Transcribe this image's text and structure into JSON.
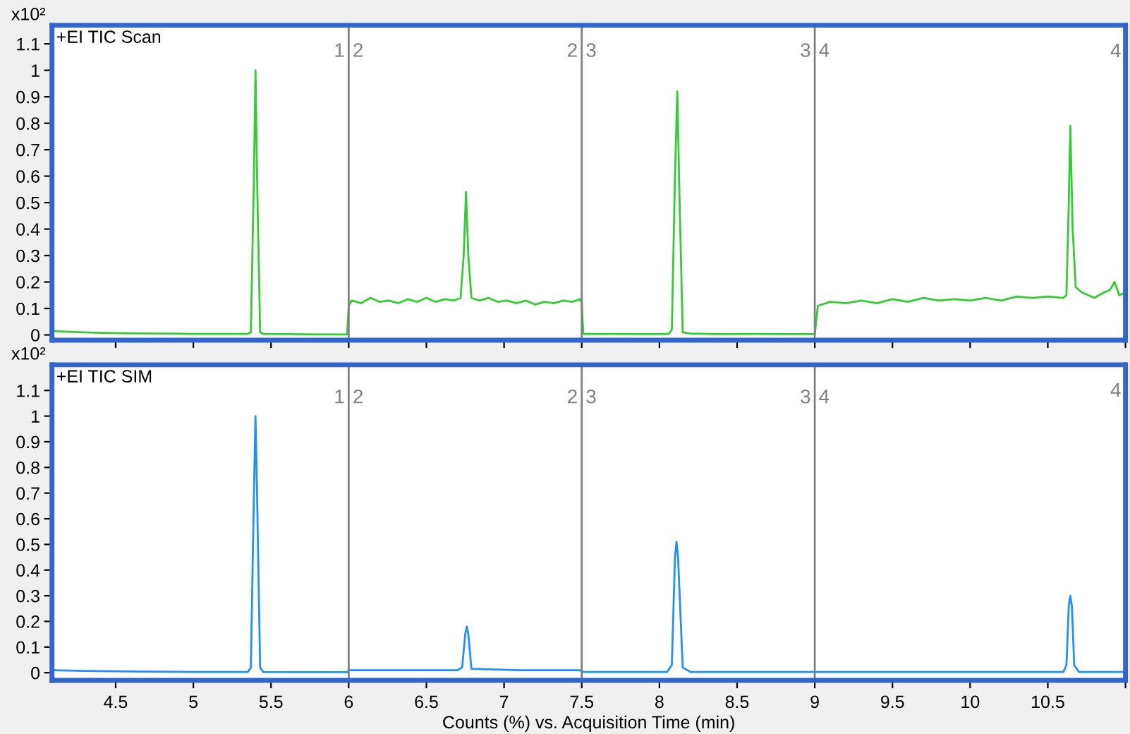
{
  "chart_data": [
    {
      "type": "line",
      "title": "+EI TIC Scan",
      "ylabel": "x10²",
      "color": "#33cc33",
      "tick_labels": "y",
      "grid": false,
      "legend": false,
      "xlim": [
        4.09,
        11.0
      ],
      "ylim": [
        -0.02,
        1.17
      ],
      "xticks": [
        4.5,
        5,
        5.5,
        6,
        6.5,
        7,
        7.5,
        8,
        8.5,
        9,
        9.5,
        10,
        10.5,
        {
          "value": 11,
          "label": null
        }
      ],
      "yticks": [
        0,
        0.1,
        0.2,
        0.3,
        0.4,
        0.5,
        0.6,
        0.7,
        0.8,
        0.9,
        1,
        1.1
      ],
      "ref_lines": [
        {
          "axis": "x",
          "value": 6,
          "color": "#808080"
        },
        {
          "axis": "x",
          "value": 7.5,
          "color": "#808080"
        },
        {
          "axis": "x",
          "value": 9,
          "color": "#808080"
        }
      ],
      "annotations": [
        {
          "text": "1",
          "x": 6,
          "y": 1.07
        },
        {
          "text": "2",
          "x": 6,
          "y": 1.07
        },
        {
          "text": "2",
          "x": 7.5,
          "y": 1.07
        },
        {
          "text": "3",
          "x": 7.5,
          "y": 1.07
        },
        {
          "text": "3",
          "x": 9,
          "y": 1.07
        },
        {
          "text": "4",
          "x": 9,
          "y": 1.07
        },
        "4"
      ],
      "x": [
        4.09,
        4.2,
        4.4,
        4.6,
        4.8,
        5.0,
        5.2,
        5.35,
        5.37,
        5.39,
        5.4,
        5.41,
        5.43,
        5.45,
        5.6,
        5.8,
        5.99,
        6.0,
        6.02,
        6.08,
        6.14,
        6.2,
        6.26,
        6.32,
        6.38,
        6.44,
        6.5,
        6.56,
        6.62,
        6.68,
        6.72,
        6.74,
        6.755,
        6.77,
        6.79,
        6.84,
        6.9,
        6.96,
        7.02,
        7.08,
        7.14,
        7.2,
        7.26,
        7.32,
        7.38,
        7.44,
        7.49,
        7.5,
        7.51,
        7.7,
        7.9,
        8.06,
        8.08,
        8.1,
        8.115,
        8.13,
        8.15,
        8.2,
        8.4,
        8.6,
        8.8,
        8.99,
        9.0,
        9.02,
        9.1,
        9.2,
        9.3,
        9.4,
        9.5,
        9.6,
        9.7,
        9.8,
        9.9,
        10.0,
        10.1,
        10.2,
        10.3,
        10.4,
        10.5,
        10.6,
        10.62,
        10.635,
        10.645,
        10.66,
        10.68,
        10.72,
        10.8,
        10.86,
        10.9,
        10.93,
        10.96,
        11.0
      ],
      "values": [
        0.015,
        0.012,
        0.008,
        0.006,
        0.005,
        0.004,
        0.004,
        0.004,
        0.01,
        0.6,
        1.0,
        0.6,
        0.01,
        0.004,
        0.003,
        0.002,
        0.002,
        0.11,
        0.13,
        0.12,
        0.14,
        0.125,
        0.13,
        0.12,
        0.135,
        0.125,
        0.14,
        0.125,
        0.135,
        0.13,
        0.14,
        0.3,
        0.54,
        0.3,
        0.14,
        0.13,
        0.14,
        0.125,
        0.13,
        0.12,
        0.13,
        0.115,
        0.125,
        0.12,
        0.13,
        0.125,
        0.135,
        0.12,
        0.003,
        0.004,
        0.003,
        0.004,
        0.02,
        0.6,
        0.92,
        0.5,
        0.01,
        0.005,
        0.003,
        0.004,
        0.003,
        0.003,
        0.003,
        0.11,
        0.125,
        0.12,
        0.13,
        0.12,
        0.135,
        0.125,
        0.14,
        0.13,
        0.135,
        0.13,
        0.14,
        0.13,
        0.145,
        0.14,
        0.145,
        0.14,
        0.15,
        0.5,
        0.79,
        0.4,
        0.18,
        0.16,
        0.14,
        0.16,
        0.17,
        0.2,
        0.15,
        0.16
      ]
    },
    {
      "type": "line",
      "title": "+EI TIC SIM",
      "ylabel": "x10²",
      "xlabel": "Counts (%) vs. Acquisition Time (min)",
      "color": "#1e90ff",
      "grid": false,
      "legend": false,
      "xlim": [
        4.09,
        11.0
      ],
      "ylim": [
        -0.03,
        1.2
      ],
      "xticks": [
        4.5,
        5,
        5.5,
        6,
        6.5,
        7,
        7.5,
        8,
        8.5,
        9,
        9.5,
        10,
        10.5,
        {
          "value": 11,
          "label": null
        }
      ],
      "yticks": [
        0,
        0.1,
        0.2,
        0.3,
        0.4,
        0.5,
        0.6,
        0.7,
        0.8,
        0.9,
        1,
        1.1
      ],
      "ref_lines": [
        {
          "axis": "x",
          "value": 6,
          "color": "#808080"
        },
        {
          "axis": "x",
          "value": 7.5,
          "color": "#808080"
        },
        {
          "axis": "x",
          "value": 9,
          "color": "#808080"
        }
      ],
      "annotations": [
        {
          "text": "1",
          "x": 6,
          "y": 1.07
        },
        {
          "text": "2",
          "x": 6,
          "y": 1.07
        },
        {
          "text": "2",
          "x": 7.5,
          "y": 1.07
        },
        {
          "text": "3",
          "x": 7.5,
          "y": 1.07
        },
        {
          "text": "3",
          "x": 9,
          "y": 1.07
        },
        {
          "text": "4",
          "x": 9,
          "y": 1.07
        },
        "4"
      ],
      "x": [
        4.09,
        4.3,
        4.6,
        5.0,
        5.35,
        5.37,
        5.39,
        5.4,
        5.41,
        5.43,
        5.45,
        5.7,
        5.99,
        6.0,
        6.3,
        6.7,
        6.73,
        6.75,
        6.76,
        6.77,
        6.79,
        7.1,
        7.49,
        7.5,
        7.51,
        8.05,
        8.08,
        8.1,
        8.11,
        8.12,
        8.15,
        8.2,
        8.99,
        9.0,
        10.0,
        10.6,
        10.62,
        10.635,
        10.645,
        10.655,
        10.67,
        10.7,
        11.0
      ],
      "values": [
        0.01,
        0.007,
        0.005,
        0.003,
        0.003,
        0.02,
        0.7,
        1.0,
        0.7,
        0.02,
        0.003,
        0.002,
        0.002,
        0.01,
        0.01,
        0.01,
        0.02,
        0.15,
        0.18,
        0.15,
        0.015,
        0.01,
        0.01,
        0.005,
        0.003,
        0.003,
        0.03,
        0.45,
        0.51,
        0.45,
        0.02,
        0.003,
        0.003,
        0.003,
        0.003,
        0.003,
        0.03,
        0.26,
        0.3,
        0.26,
        0.03,
        0.003,
        0.003
      ]
    }
  ]
}
